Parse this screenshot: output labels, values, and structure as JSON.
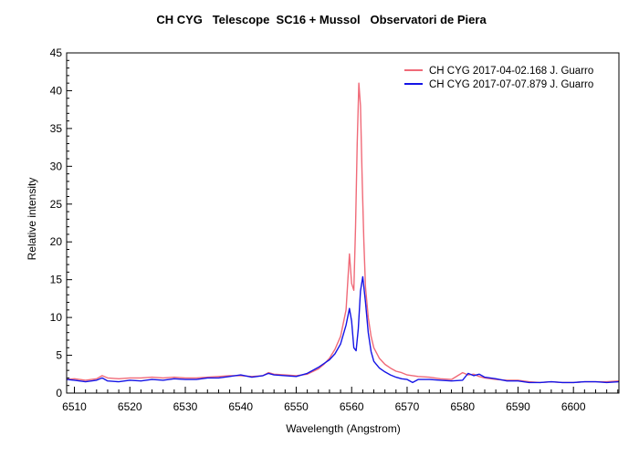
{
  "chart_data": {
    "type": "line",
    "title": "CH CYG   Telescope  SC16 + Mussol   Observatori de Piera",
    "xlabel": "Wavelength (Angstrom)",
    "ylabel": "Relative intensity",
    "xlim": [
      6508.6,
      6608.2
    ],
    "ylim": [
      0,
      45
    ],
    "xticks": [
      6510,
      6520,
      6530,
      6540,
      6550,
      6560,
      6570,
      6580,
      6590,
      6600
    ],
    "yticks": [
      0,
      5,
      10,
      15,
      20,
      25,
      30,
      35,
      40,
      45
    ],
    "grid": false,
    "legend_position": "upper right",
    "series": [
      {
        "name": "CH CYG  2017-04-02.168  J. Guarro",
        "color": "#f06a78",
        "x": [
          6508.6,
          6510,
          6512,
          6514,
          6515,
          6516,
          6518,
          6520,
          6522,
          6524,
          6526,
          6528,
          6530,
          6532,
          6534,
          6536,
          6538,
          6540,
          6542,
          6544,
          6545,
          6546,
          6548,
          6550,
          6552,
          6554,
          6555,
          6556,
          6557,
          6558,
          6559,
          6559.6,
          6560,
          6560.4,
          6560.7,
          6561,
          6561.3,
          6561.6,
          6561.9,
          6562.2,
          6562.5,
          6563,
          6563.5,
          6564,
          6565,
          6566,
          6567,
          6568,
          6569,
          6570,
          6572,
          6574,
          6576,
          6578,
          6580,
          6581,
          6582,
          6583,
          6584,
          6586,
          6588,
          6590,
          6592,
          6594,
          6596,
          6598,
          6600,
          6602,
          6604,
          6606,
          6608.2
        ],
        "y": [
          1.8,
          1.9,
          1.7,
          1.9,
          2.3,
          2.0,
          1.9,
          2.0,
          2.0,
          2.1,
          2.0,
          2.1,
          2.0,
          2.0,
          2.1,
          2.2,
          2.3,
          2.3,
          2.2,
          2.3,
          2.7,
          2.5,
          2.4,
          2.3,
          2.5,
          3.2,
          3.8,
          4.6,
          5.8,
          7.5,
          11.0,
          18.4,
          14.5,
          13.6,
          22.0,
          33.0,
          41.0,
          38.0,
          28.0,
          20.0,
          14.0,
          10.0,
          7.5,
          6.0,
          4.6,
          3.8,
          3.3,
          2.9,
          2.7,
          2.4,
          2.2,
          2.1,
          1.9,
          1.8,
          2.7,
          2.4,
          2.5,
          2.2,
          2.0,
          1.8,
          1.7,
          1.7,
          1.5,
          1.4,
          1.5,
          1.4,
          1.4,
          1.5,
          1.5,
          1.5,
          1.6
        ]
      },
      {
        "name": "CH CYG  2017-07-07.879  J. Guarro",
        "color": "#1414e6",
        "x": [
          6508.6,
          6510,
          6512,
          6514,
          6515,
          6516,
          6518,
          6520,
          6522,
          6524,
          6526,
          6528,
          6530,
          6532,
          6534,
          6536,
          6538,
          6540,
          6542,
          6544,
          6545,
          6546,
          6548,
          6550,
          6552,
          6554,
          6555,
          6556,
          6557,
          6558,
          6559,
          6559.6,
          6560,
          6560.4,
          6560.8,
          6561.2,
          6561.6,
          6562,
          6562.5,
          6563,
          6563.5,
          6564,
          6565,
          6566,
          6567,
          6568,
          6569,
          6570,
          6571,
          6572,
          6574,
          6576,
          6578,
          6580,
          6581,
          6582,
          6583,
          6584,
          6586,
          6588,
          6590,
          6592,
          6594,
          6596,
          6598,
          6600,
          6602,
          6604,
          6606,
          6608.2
        ],
        "y": [
          1.8,
          1.7,
          1.5,
          1.7,
          2.0,
          1.6,
          1.5,
          1.7,
          1.6,
          1.8,
          1.7,
          1.9,
          1.8,
          1.8,
          2.0,
          2.0,
          2.2,
          2.4,
          2.1,
          2.3,
          2.6,
          2.4,
          2.3,
          2.2,
          2.6,
          3.4,
          3.9,
          4.4,
          5.2,
          6.5,
          9.0,
          11.2,
          9.5,
          6.0,
          5.6,
          8.5,
          13.5,
          15.4,
          12.0,
          8.0,
          5.5,
          4.2,
          3.3,
          2.8,
          2.4,
          2.1,
          1.9,
          1.8,
          1.4,
          1.8,
          1.8,
          1.7,
          1.6,
          1.7,
          2.6,
          2.3,
          2.5,
          2.1,
          1.9,
          1.6,
          1.6,
          1.4,
          1.4,
          1.5,
          1.4,
          1.4,
          1.5,
          1.5,
          1.4,
          1.5
        ]
      }
    ]
  }
}
